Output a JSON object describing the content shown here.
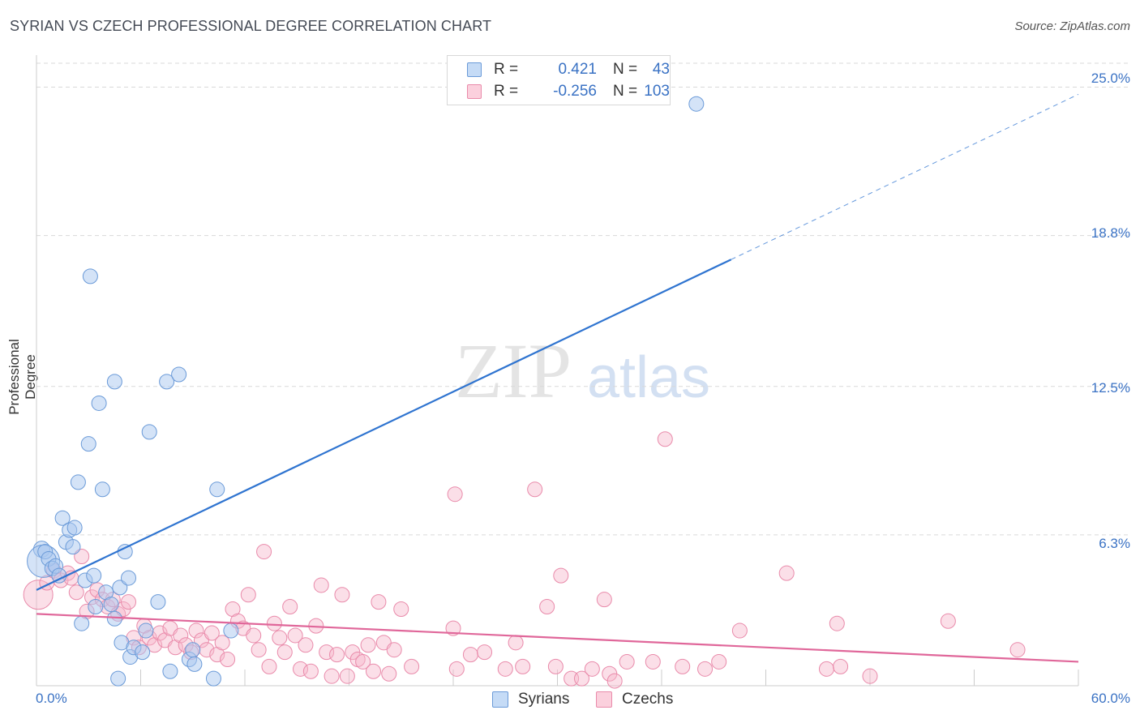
{
  "title": "SYRIAN VS CZECH PROFESSIONAL DEGREE CORRELATION CHART",
  "source": "Source: ZipAtlas.com",
  "watermark": {
    "zip": "ZIP",
    "atlas": "atlas"
  },
  "legend": {
    "rows": [
      {
        "r_label": "R =",
        "r_value": "0.421",
        "n_label": "N =",
        "n_value": "43"
      },
      {
        "r_label": "R =",
        "r_value": "-0.256",
        "n_label": "N =",
        "n_value": "103"
      }
    ]
  },
  "bottom_legend": [
    "Syrians",
    "Czechs"
  ],
  "colors": {
    "syrian_fill": "#a9c8f0",
    "syrian_stroke": "#6a9ad8",
    "syrian_line": "#2f74d0",
    "czech_fill": "#f6b8cb",
    "czech_stroke": "#e98aaa",
    "czech_line": "#e0679a",
    "grid": "#d9d9d9",
    "tick_label": "#3a72c4"
  },
  "chart_data": {
    "type": "scatter",
    "title": "SYRIAN VS CZECH PROFESSIONAL DEGREE CORRELATION CHART",
    "xlabel": "",
    "ylabel": "Professional Degree",
    "xlim": [
      0,
      60
    ],
    "ylim": [
      0,
      26
    ],
    "x_tick_labels": [
      "0.0%",
      "60.0%"
    ],
    "y_ticks": [
      6.3,
      12.5,
      18.8,
      25.0
    ],
    "y_tick_labels": [
      "6.3%",
      "12.5%",
      "18.8%",
      "25.0%"
    ],
    "legend_position": "top-center",
    "series": [
      {
        "name": "Syrians",
        "r": 0.421,
        "n": 43,
        "trend": {
          "x0": 0,
          "y0": 4.0,
          "x1": 40,
          "y1": 17.8,
          "dashed_to_x": 60,
          "dashed_to_y": 24.7
        },
        "points": [
          [
            0.3,
            5.7,
            10
          ],
          [
            0.4,
            5.2,
            20
          ],
          [
            0.5,
            5.6,
            9
          ],
          [
            0.7,
            5.3,
            9
          ],
          [
            0.9,
            4.9,
            9
          ],
          [
            1.1,
            5.0,
            9
          ],
          [
            1.3,
            4.6,
            9
          ],
          [
            1.5,
            7.0,
            9
          ],
          [
            1.7,
            6.0,
            9
          ],
          [
            1.9,
            6.5,
            9
          ],
          [
            2.1,
            5.8,
            9
          ],
          [
            2.2,
            6.6,
            9
          ],
          [
            2.4,
            8.5,
            9
          ],
          [
            2.6,
            2.6,
            9
          ],
          [
            2.8,
            4.4,
            9
          ],
          [
            3.0,
            10.1,
            9
          ],
          [
            3.1,
            17.1,
            9
          ],
          [
            3.3,
            4.6,
            9
          ],
          [
            3.4,
            3.3,
            9
          ],
          [
            3.6,
            11.8,
            9
          ],
          [
            3.8,
            8.2,
            9
          ],
          [
            4.0,
            3.9,
            9
          ],
          [
            4.3,
            3.4,
            9
          ],
          [
            4.5,
            2.8,
            9
          ],
          [
            4.8,
            4.1,
            9
          ],
          [
            4.5,
            12.7,
            9
          ],
          [
            4.7,
            0.3,
            9
          ],
          [
            4.9,
            1.8,
            9
          ],
          [
            5.1,
            5.6,
            9
          ],
          [
            5.3,
            4.5,
            9
          ],
          [
            5.4,
            1.2,
            9
          ],
          [
            5.6,
            1.6,
            9
          ],
          [
            6.1,
            1.4,
            9
          ],
          [
            6.3,
            2.3,
            9
          ],
          [
            6.5,
            10.6,
            9
          ],
          [
            7.0,
            3.5,
            9
          ],
          [
            7.5,
            12.7,
            9
          ],
          [
            7.7,
            0.6,
            9
          ],
          [
            8.2,
            13.0,
            9
          ],
          [
            8.8,
            1.1,
            9
          ],
          [
            9.0,
            1.5,
            9
          ],
          [
            9.1,
            0.9,
            9
          ],
          [
            10.2,
            0.3,
            9
          ],
          [
            10.4,
            8.2,
            9
          ],
          [
            11.2,
            2.3,
            9
          ],
          [
            38.0,
            24.3,
            9
          ]
        ]
      },
      {
        "name": "Czechs",
        "r": -0.256,
        "n": 103,
        "trend": {
          "x0": 0,
          "y0": 3.0,
          "x1": 60,
          "y1": 1.0
        },
        "points": [
          [
            0.1,
            3.8,
            18
          ],
          [
            0.6,
            4.3,
            9
          ],
          [
            1.0,
            4.8,
            9
          ],
          [
            1.4,
            4.4,
            9
          ],
          [
            1.8,
            4.7,
            9
          ],
          [
            2.0,
            4.5,
            9
          ],
          [
            2.3,
            3.9,
            9
          ],
          [
            2.6,
            5.4,
            9
          ],
          [
            2.9,
            3.1,
            9
          ],
          [
            3.2,
            3.7,
            9
          ],
          [
            3.5,
            4.0,
            9
          ],
          [
            3.8,
            3.6,
            9
          ],
          [
            4.1,
            3.3,
            9
          ],
          [
            4.4,
            3.6,
            9
          ],
          [
            4.7,
            3.0,
            9
          ],
          [
            5.0,
            3.2,
            9
          ],
          [
            5.3,
            3.5,
            9
          ],
          [
            5.6,
            2.0,
            9
          ],
          [
            5.9,
            1.6,
            9
          ],
          [
            6.2,
            2.5,
            9
          ],
          [
            6.5,
            2.0,
            9
          ],
          [
            6.8,
            1.7,
            9
          ],
          [
            7.1,
            2.2,
            9
          ],
          [
            7.4,
            1.9,
            9
          ],
          [
            7.7,
            2.4,
            9
          ],
          [
            8.0,
            1.6,
            9
          ],
          [
            8.3,
            2.1,
            9
          ],
          [
            8.6,
            1.7,
            9
          ],
          [
            8.9,
            1.4,
            9
          ],
          [
            9.2,
            2.3,
            9
          ],
          [
            9.5,
            1.9,
            9
          ],
          [
            9.8,
            1.5,
            9
          ],
          [
            10.1,
            2.2,
            9
          ],
          [
            10.4,
            1.3,
            9
          ],
          [
            10.7,
            1.8,
            9
          ],
          [
            11.0,
            1.1,
            9
          ],
          [
            11.3,
            3.2,
            9
          ],
          [
            11.6,
            2.7,
            9
          ],
          [
            11.9,
            2.4,
            9
          ],
          [
            12.2,
            3.8,
            9
          ],
          [
            12.5,
            2.1,
            9
          ],
          [
            12.8,
            1.5,
            9
          ],
          [
            13.1,
            5.6,
            9
          ],
          [
            13.4,
            0.8,
            9
          ],
          [
            13.7,
            2.6,
            9
          ],
          [
            14.0,
            2.0,
            9
          ],
          [
            14.3,
            1.4,
            9
          ],
          [
            14.6,
            3.3,
            9
          ],
          [
            14.9,
            2.1,
            9
          ],
          [
            15.2,
            0.7,
            9
          ],
          [
            15.5,
            1.7,
            9
          ],
          [
            15.8,
            0.6,
            9
          ],
          [
            16.1,
            2.5,
            9
          ],
          [
            16.4,
            4.2,
            9
          ],
          [
            16.7,
            1.4,
            9
          ],
          [
            17.0,
            0.4,
            9
          ],
          [
            17.3,
            1.3,
            9
          ],
          [
            17.6,
            3.8,
            9
          ],
          [
            17.9,
            0.4,
            9
          ],
          [
            18.2,
            1.4,
            9
          ],
          [
            18.5,
            1.1,
            9
          ],
          [
            18.8,
            1.0,
            9
          ],
          [
            19.1,
            1.7,
            9
          ],
          [
            19.4,
            0.6,
            9
          ],
          [
            19.7,
            3.5,
            9
          ],
          [
            20.0,
            1.8,
            9
          ],
          [
            20.3,
            0.5,
            9
          ],
          [
            20.6,
            1.5,
            9
          ],
          [
            21.0,
            3.2,
            9
          ],
          [
            21.6,
            0.8,
            9
          ],
          [
            24.0,
            2.4,
            9
          ],
          [
            24.2,
            0.7,
            9
          ],
          [
            25.0,
            1.3,
            9
          ],
          [
            25.8,
            1.4,
            9
          ],
          [
            24.1,
            8.0,
            9
          ],
          [
            27.0,
            0.7,
            9
          ],
          [
            27.6,
            1.8,
            9
          ],
          [
            28.0,
            0.8,
            9
          ],
          [
            28.7,
            8.2,
            9
          ],
          [
            29.4,
            3.3,
            9
          ],
          [
            29.9,
            0.8,
            9
          ],
          [
            30.2,
            4.6,
            9
          ],
          [
            30.8,
            0.3,
            9
          ],
          [
            31.4,
            0.3,
            9
          ],
          [
            32.0,
            0.7,
            9
          ],
          [
            32.7,
            3.6,
            9
          ],
          [
            33.0,
            0.5,
            9
          ],
          [
            33.3,
            0.2,
            9
          ],
          [
            34.0,
            1.0,
            9
          ],
          [
            35.5,
            1.0,
            9
          ],
          [
            36.2,
            10.3,
            9
          ],
          [
            37.2,
            0.8,
            9
          ],
          [
            38.5,
            0.7,
            9
          ],
          [
            39.3,
            1.0,
            9
          ],
          [
            40.5,
            2.3,
            9
          ],
          [
            43.2,
            4.7,
            9
          ],
          [
            45.5,
            0.7,
            9
          ],
          [
            46.1,
            2.6,
            9
          ],
          [
            46.3,
            0.8,
            9
          ],
          [
            48.0,
            0.4,
            9
          ],
          [
            52.5,
            2.7,
            9
          ],
          [
            56.5,
            1.5,
            9
          ]
        ]
      }
    ]
  }
}
